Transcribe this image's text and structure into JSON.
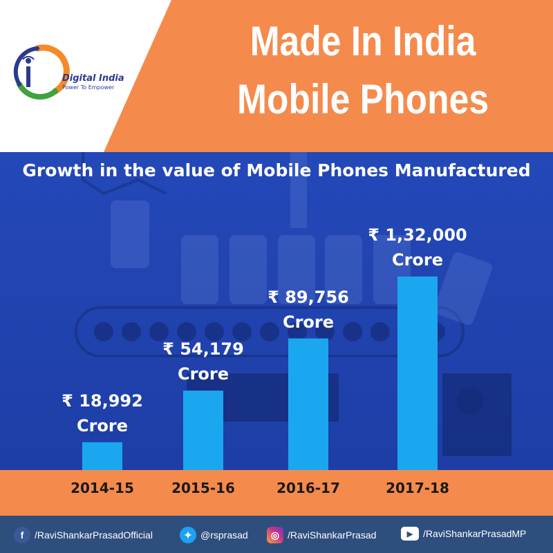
{
  "header": {
    "title_line1": "Made In India",
    "title_line2": "Mobile Phones",
    "brand_name": "Digital India",
    "brand_tagline": "Power To Empower"
  },
  "colors": {
    "accent_orange": "#f58a4d",
    "chart_background": "#1f3fa8",
    "bar_fill": "#1ba6f0",
    "footer_background": "#2e4e7e"
  },
  "chart_data": {
    "type": "bar",
    "title": "Growth in the value of Mobile Phones Manufactured",
    "categories": [
      "2014-15",
      "2015-16",
      "2016-17",
      "2017-18"
    ],
    "values": [
      18992,
      54179,
      89756,
      132000
    ],
    "value_labels": [
      "₹ 18,992",
      "₹ 54,179",
      "₹ 89,756",
      "₹ 1,32,000"
    ],
    "unit_label": "Crore",
    "grid": false,
    "legend": "none"
  },
  "footer": {
    "facebook": "/RaviShankarPrasadOfficial",
    "twitter": "@rsprasad",
    "instagram": "/RaviShankarPrasad",
    "youtube": "/RaviShankarPrasadMP"
  },
  "icons": {
    "facebook": "facebook-icon",
    "twitter": "twitter-icon",
    "instagram": "instagram-icon",
    "youtube": "youtube-icon"
  }
}
